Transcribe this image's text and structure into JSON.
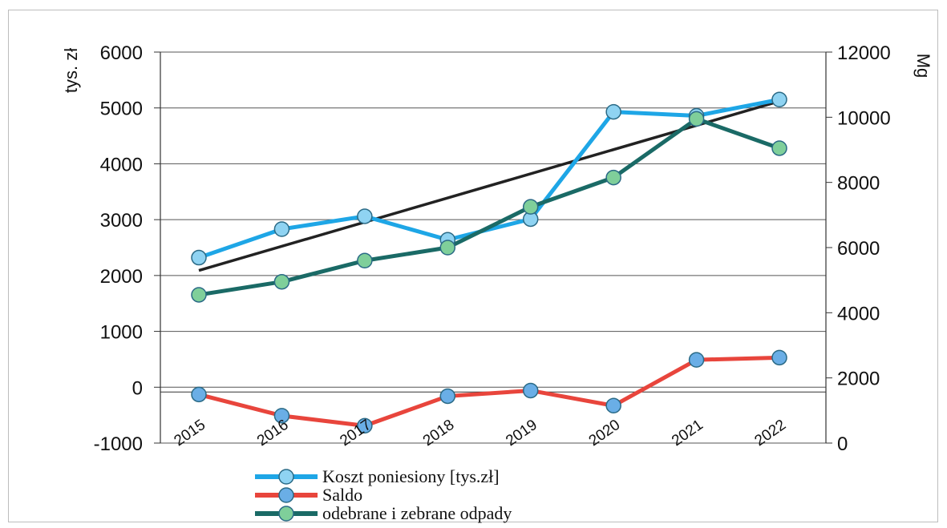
{
  "chart_data": {
    "type": "line",
    "categories": [
      "2015",
      "2016",
      "2017",
      "2018",
      "2019",
      "2020",
      "2021",
      "2022"
    ],
    "y_left": {
      "label": "tys. zł",
      "ylim": [
        -1000,
        6000
      ],
      "ticks": [
        -1000,
        0,
        1000,
        2000,
        3000,
        4000,
        5000,
        6000
      ]
    },
    "y_right": {
      "label": "Mg",
      "ylim": [
        0,
        12000
      ],
      "ticks": [
        0,
        2000,
        4000,
        6000,
        8000,
        10000,
        12000
      ]
    },
    "grid": true,
    "legend_position": "bottom",
    "series": [
      {
        "name": "Koszt poniesiony [tys.zł]",
        "axis": "left",
        "color": "#1ea6e6",
        "marker_color": "#8fd3f2",
        "values": [
          2320,
          2830,
          3060,
          2640,
          3010,
          4930,
          4860,
          5150
        ]
      },
      {
        "name": "Saldo",
        "axis": "left",
        "color": "#e8453c",
        "marker_color": "#6aaee6",
        "values": [
          -130,
          -510,
          -690,
          -160,
          -60,
          -330,
          490,
          530
        ]
      },
      {
        "name": "odebrane i zebrane odpady",
        "axis": "right",
        "color": "#1a6a66",
        "marker_color": "#7fcf9a",
        "values": [
          4550,
          4950,
          5600,
          6000,
          7250,
          8150,
          9950,
          9050
        ]
      }
    ],
    "trendline": {
      "color": "#222222",
      "axis": "left",
      "start": 2090,
      "end": 5120
    }
  }
}
